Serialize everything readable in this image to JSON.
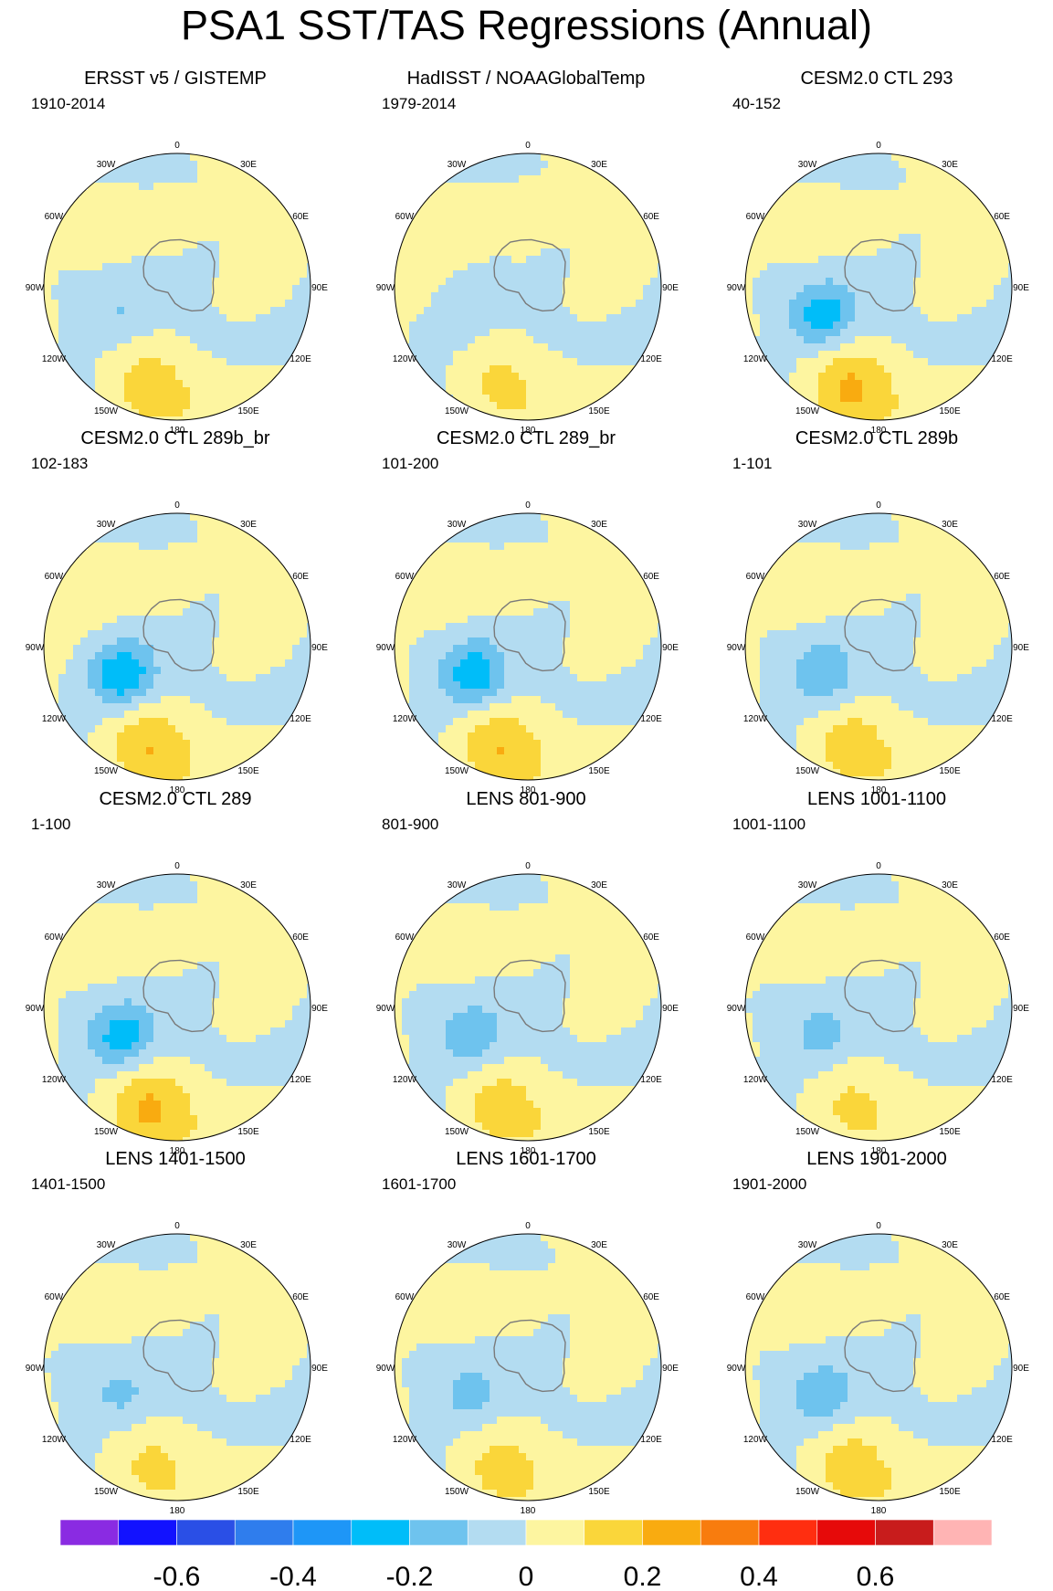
{
  "title": "PSA1 SST/TAS Regressions (Annual)",
  "colors": {
    "levels": [
      "#8a2be2",
      "#1212ff",
      "#2a4fe6",
      "#2f7ded",
      "#1e96f7",
      "#00bdf9",
      "#6ec3ee",
      "#b3dcf1",
      "#fdf5a0",
      "#fad63a",
      "#f9ab10",
      "#f87c0e",
      "#ff2e10",
      "#e60a0a",
      "#c81c1c",
      "#ffb4b4"
    ],
    "land": "#ffffff",
    "coast": "#7a7a7a"
  },
  "lon_labels": [
    "0",
    "30E",
    "60E",
    "90E",
    "120E",
    "150E",
    "180",
    "150W",
    "120W",
    "90W",
    "60W",
    "30W"
  ],
  "chart_data": {
    "type": "filled-contour polar stereographic maps",
    "colorbar": {
      "ticks": [
        "-0.6",
        "-0.4",
        "-0.2",
        "0",
        "0.2",
        "0.4",
        "0.6"
      ],
      "min": -0.8,
      "max": 0.8,
      "interval": 0.1
    },
    "panels": [
      {
        "title": "ERSST v5 / GISTEMP",
        "period": "1910-2014"
      },
      {
        "title": "HadISST / NOAAGlobalTemp",
        "period": "1979-2014"
      },
      {
        "title": "CESM2.0 CTL 293",
        "period": "40-152"
      },
      {
        "title": "CESM2.0 CTL 289b_br",
        "period": "102-183"
      },
      {
        "title": "CESM2.0 CTL 289_br",
        "period": "101-200"
      },
      {
        "title": "CESM2.0 CTL 289b",
        "period": "1-101"
      },
      {
        "title": "CESM2.0 CTL 289",
        "period": "1-100"
      },
      {
        "title": "LENS 801-900",
        "period": "801-900"
      },
      {
        "title": "LENS 1001-1100",
        "period": "1001-1100"
      },
      {
        "title": "LENS 1401-1500",
        "period": "1401-1500"
      },
      {
        "title": "LENS 1601-1700",
        "period": "1601-1700"
      },
      {
        "title": "LENS 1901-2000",
        "period": "1901-2000"
      }
    ]
  }
}
